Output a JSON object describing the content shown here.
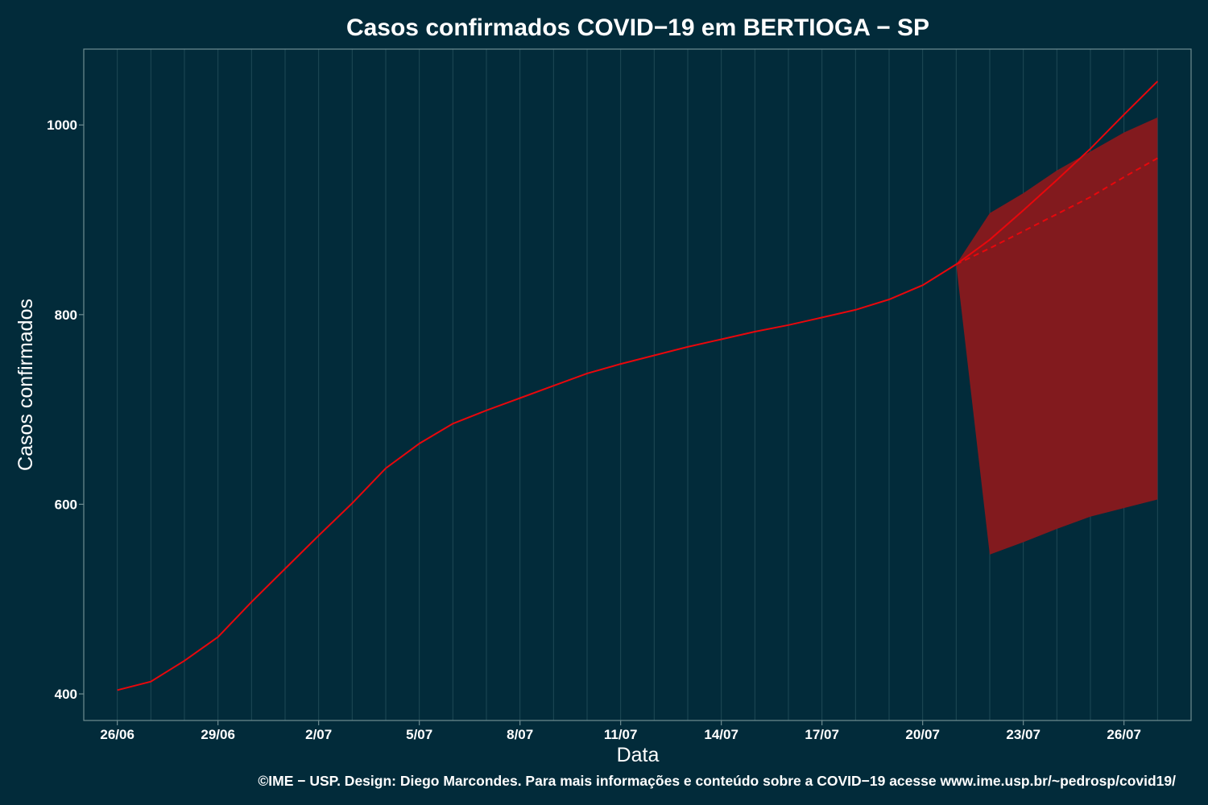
{
  "chart_data": {
    "type": "line",
    "title": "Casos confirmados COVID−19 em BERTIOGA − SP",
    "xlabel": "Data",
    "ylabel": "Casos confirmados",
    "caption": "©IME − USP. Design: Diego Marcondes. Para mais informações e conteúdo sobre a COVID−19 acesse www.ime.usp.br/~pedrosp/covid19/",
    "x_tick_labels": [
      "26/06",
      "29/06",
      "2/07",
      "5/07",
      "8/07",
      "11/07",
      "14/07",
      "17/07",
      "20/07",
      "23/07",
      "26/07"
    ],
    "y_ticks": [
      400,
      600,
      800,
      1000
    ],
    "xlim": [
      "2020-06-25",
      "2020-07-28"
    ],
    "ylim": [
      372,
      1080
    ],
    "grid": true,
    "colors": {
      "background": "#022b3a",
      "grid": "#1f4a56",
      "axis": "#6f8d92",
      "line": "#e8070c",
      "band": "#821a1e"
    },
    "series": [
      {
        "line": "solid",
        "x": [
          "2020-06-26",
          "2020-06-27",
          "2020-06-28",
          "2020-06-29",
          "2020-06-30",
          "2020-07-01",
          "2020-07-02",
          "2020-07-03",
          "2020-07-04",
          "2020-07-05",
          "2020-07-06",
          "2020-07-07",
          "2020-07-08",
          "2020-07-09",
          "2020-07-10",
          "2020-07-11",
          "2020-07-12",
          "2020-07-13",
          "2020-07-14",
          "2020-07-15",
          "2020-07-16",
          "2020-07-17",
          "2020-07-18",
          "2020-07-19",
          "2020-07-20",
          "2020-07-21",
          "2020-07-22",
          "2020-07-23",
          "2020-07-24",
          "2020-07-25",
          "2020-07-26",
          "2020-07-27"
        ],
        "values": [
          404,
          413,
          435,
          460,
          497,
          532,
          567,
          601,
          638,
          664,
          685,
          699,
          712,
          725,
          738,
          748,
          757,
          766,
          774,
          782,
          789,
          797,
          805,
          816,
          831,
          853,
          879,
          910,
          942,
          975,
          1011,
          1046
        ]
      },
      {
        "line": "dashed",
        "x": [
          "2020-07-21",
          "2020-07-22",
          "2020-07-23",
          "2020-07-24",
          "2020-07-25",
          "2020-07-26",
          "2020-07-27"
        ],
        "values": [
          853,
          870,
          888,
          906,
          924,
          945,
          965
        ]
      }
    ],
    "interval": {
      "x": [
        "2020-07-21",
        "2020-07-22",
        "2020-07-23",
        "2020-07-24",
        "2020-07-25",
        "2020-07-26",
        "2020-07-27"
      ],
      "lower": [
        853,
        547,
        560,
        574,
        587,
        596,
        605
      ],
      "upper": [
        853,
        907,
        928,
        952,
        972,
        992,
        1008
      ]
    }
  }
}
